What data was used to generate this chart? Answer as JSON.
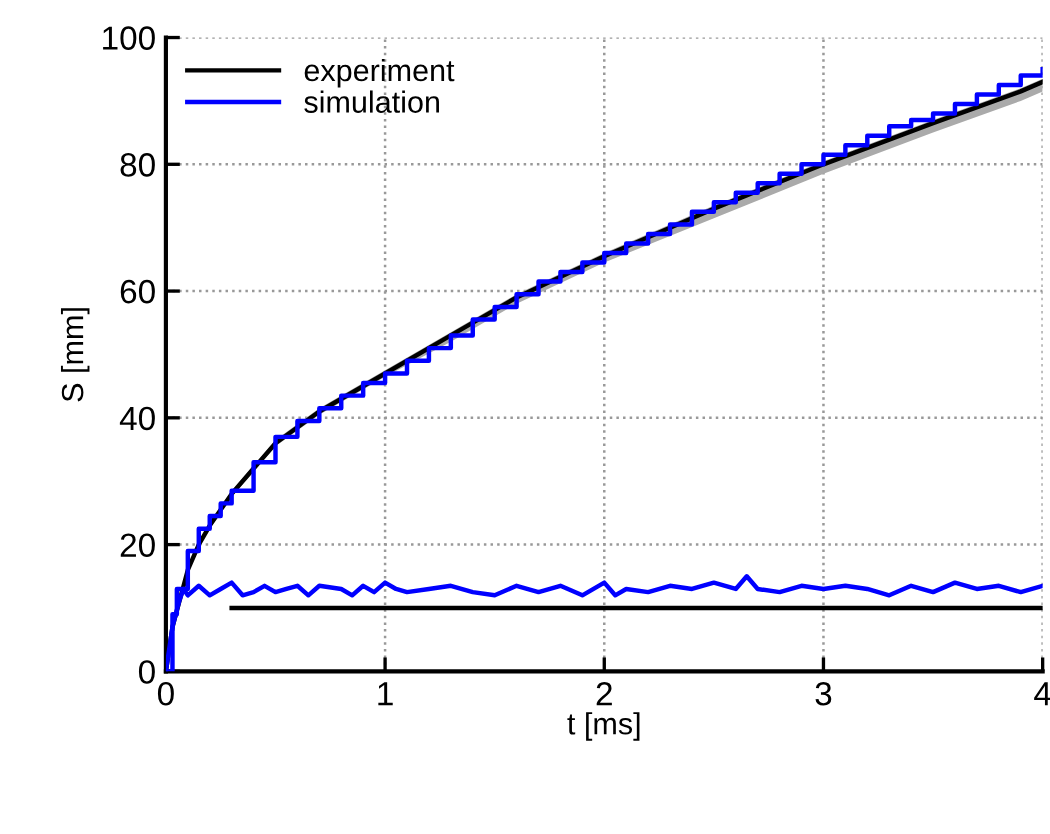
{
  "chart_data": {
    "type": "line",
    "xlabel": "t [ms]",
    "ylabel": "S [mm]",
    "xlim": [
      0,
      4
    ],
    "ylim": [
      0,
      100
    ],
    "xticks": [
      0,
      1,
      2,
      3,
      4
    ],
    "yticks": [
      0,
      20,
      40,
      60,
      80,
      100
    ],
    "grid": true,
    "legend": "top left",
    "line_style": "solid",
    "marker": "none",
    "series": [
      {
        "name": "experiment",
        "color": "#000000",
        "x": [
          0,
          0.03,
          0.1,
          0.15,
          0.2,
          0.3,
          0.4,
          0.5,
          0.7,
          1.0,
          1.3,
          1.6,
          2.0,
          2.5,
          3.0,
          3.5,
          3.9,
          4.0
        ],
        "values": [
          0,
          7,
          16,
          20,
          23,
          28,
          32,
          36,
          41,
          47,
          53,
          59,
          65.5,
          73,
          80,
          86.5,
          91.5,
          93
        ],
        "lower": [
          0,
          6.5,
          15.5,
          19.5,
          22.5,
          27.5,
          31.5,
          35.5,
          40.5,
          46.5,
          52,
          58,
          64.5,
          71.5,
          78.5,
          85,
          90,
          91.5
        ],
        "upper": [
          0,
          7.5,
          16.5,
          20.5,
          23.5,
          28.5,
          32.5,
          36.5,
          41.5,
          47.5,
          53.5,
          59.5,
          66,
          73.5,
          80.5,
          87,
          92,
          93.5
        ]
      },
      {
        "name": "simulation",
        "color": "#0000ff",
        "type": "step",
        "x": [
          0,
          0.03,
          0.05,
          0.1,
          0.15,
          0.2,
          0.25,
          0.3,
          0.4,
          0.5,
          0.6,
          0.7,
          0.8,
          0.9,
          1.0,
          1.1,
          1.2,
          1.3,
          1.4,
          1.5,
          1.6,
          1.7,
          1.8,
          1.9,
          2.0,
          2.1,
          2.2,
          2.3,
          2.4,
          2.5,
          2.6,
          2.7,
          2.8,
          2.9,
          3.0,
          3.1,
          3.2,
          3.3,
          3.4,
          3.5,
          3.6,
          3.7,
          3.8,
          3.9,
          4.0
        ],
        "values": [
          0,
          9,
          13,
          19,
          22.5,
          24.5,
          26.5,
          28.5,
          33,
          37,
          39.5,
          41.5,
          43.5,
          45.5,
          47,
          49,
          51,
          53,
          55.5,
          57.5,
          59.5,
          61.5,
          63,
          64.5,
          66,
          67.5,
          69,
          70.5,
          72.5,
          74,
          75.5,
          77,
          78.5,
          80,
          81.5,
          83,
          84.5,
          86,
          87,
          88,
          89.5,
          91,
          92.5,
          94,
          95
        ]
      },
      {
        "color": "#0000ff",
        "x": [
          0,
          0.03,
          0.06,
          0.08,
          0.1,
          0.15,
          0.2,
          0.25,
          0.3,
          0.35,
          0.4,
          0.45,
          0.5,
          0.55,
          0.6,
          0.65,
          0.7,
          0.8,
          0.85,
          0.9,
          0.95,
          1.0,
          1.05,
          1.1,
          1.2,
          1.3,
          1.4,
          1.5,
          1.6,
          1.7,
          1.8,
          1.9,
          2.0,
          2.05,
          2.1,
          2.2,
          2.3,
          2.4,
          2.5,
          2.6,
          2.65,
          2.7,
          2.8,
          2.9,
          3.0,
          3.1,
          3.2,
          3.3,
          3.4,
          3.5,
          3.6,
          3.7,
          3.8,
          3.9,
          4.0
        ],
        "values": [
          0,
          7,
          11,
          13,
          12,
          13.5,
          12,
          13,
          14,
          12,
          12.5,
          13.5,
          12.5,
          13,
          13.5,
          12,
          13.5,
          13,
          12,
          13.5,
          12.5,
          14,
          13,
          12.5,
          13,
          13.5,
          12.5,
          12,
          13.5,
          12.5,
          13.5,
          12,
          14,
          12,
          13,
          12.5,
          13.5,
          13,
          14,
          13,
          15,
          13,
          12.5,
          13.5,
          13,
          13.5,
          13,
          12,
          13.5,
          12.5,
          14,
          13,
          13.5,
          12.5,
          13.5
        ]
      },
      {
        "color": "#000000",
        "x": [
          0.3,
          4.0
        ],
        "values": [
          10,
          10
        ]
      }
    ]
  }
}
